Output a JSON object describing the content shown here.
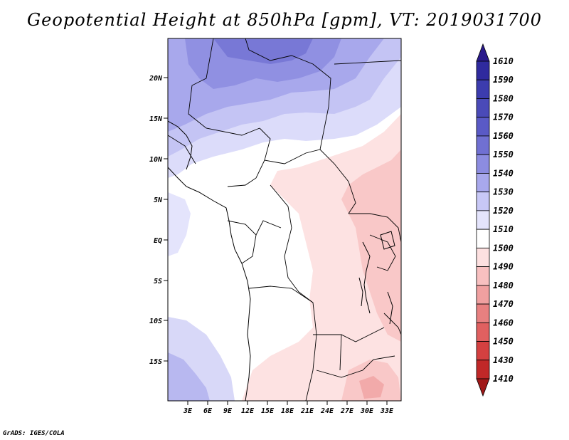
{
  "title": "Geopotential Height at 850hPa [gpm], VT: 2019031700",
  "credit": "GrADS: IGES/COLA",
  "map": {
    "lat_labels": [
      "20N",
      "15N",
      "10N",
      "5N",
      "EQ",
      "5S",
      "10S",
      "15S"
    ],
    "lon_labels": [
      "3E",
      "6E",
      "9E",
      "12E",
      "15E",
      "18E",
      "21E",
      "24E",
      "27E",
      "30E",
      "33E"
    ]
  },
  "colorbar": {
    "levels": [
      "1610",
      "1590",
      "1580",
      "1570",
      "1560",
      "1550",
      "1540",
      "1530",
      "1520",
      "1510",
      "1500",
      "1490",
      "1480",
      "1470",
      "1460",
      "1450",
      "1430",
      "1410"
    ],
    "colors": [
      "#2a1a8c",
      "#2f2a9e",
      "#3c3cae",
      "#4a4ab8",
      "#5a5ac6",
      "#7070d2",
      "#8c8ce0",
      "#a8a8ec",
      "#c8c8f6",
      "#e4e4fc",
      "#ffffff",
      "#fde0e0",
      "#f8c0c0",
      "#f0a0a0",
      "#e88080",
      "#e06060",
      "#d44040",
      "#c02828",
      "#a01818"
    ]
  },
  "chart_data": {
    "type": "heatmap",
    "title": "Geopotential Height at 850hPa [gpm], VT: 2019031700",
    "units": "gpm",
    "x_ticks": [
      "3E",
      "6E",
      "9E",
      "12E",
      "15E",
      "18E",
      "21E",
      "24E",
      "27E",
      "30E",
      "33E"
    ],
    "y_ticks": [
      "20N",
      "15N",
      "10N",
      "5N",
      "EQ",
      "5S",
      "10S",
      "15S"
    ],
    "legend_levels": [
      1610,
      1590,
      1580,
      1570,
      1560,
      1550,
      1540,
      1530,
      1520,
      1510,
      1500,
      1490,
      1480,
      1470,
      1460,
      1450,
      1430,
      1410
    ],
    "legend_position": "right"
  }
}
